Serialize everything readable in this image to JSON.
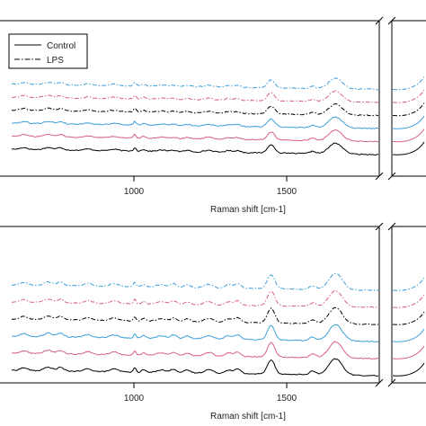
{
  "chart_data": [
    {
      "type": "line",
      "panel": "top",
      "xlabel": "Raman shift [cm-1]",
      "ylabel": "",
      "x_ticks": [
        1000,
        1500
      ],
      "xlim": [
        600,
        1800
      ],
      "axis_break_after": 1800,
      "grid": false,
      "legend": {
        "placement": "top-left",
        "entries": [
          {
            "label": "Control",
            "style": "solid"
          },
          {
            "label": "LPS",
            "style": "dashdot"
          }
        ]
      },
      "series": [
        {
          "color": "#000000",
          "style": "solid",
          "offset": 0
        },
        {
          "color": "#d8607e",
          "style": "solid",
          "offset": 1
        },
        {
          "color": "#3c9fd8",
          "style": "solid",
          "offset": 2
        },
        {
          "color": "#000000",
          "style": "dashdot",
          "offset": 3
        },
        {
          "color": "#d8607e",
          "style": "dashdot",
          "offset": 4
        },
        {
          "color": "#3c9fd8",
          "style": "dashdot",
          "offset": 5
        }
      ]
    },
    {
      "type": "line",
      "panel": "bottom",
      "xlabel": "Raman shift [cm-1]",
      "ylabel": "",
      "x_ticks": [
        1000,
        1500
      ],
      "xlim": [
        600,
        1800
      ],
      "axis_break_after": 1800,
      "grid": false,
      "series": [
        {
          "color": "#000000",
          "style": "solid",
          "offset": 0
        },
        {
          "color": "#d8607e",
          "style": "solid",
          "offset": 1
        },
        {
          "color": "#3c9fd8",
          "style": "solid",
          "offset": 2
        },
        {
          "color": "#000000",
          "style": "dashdot",
          "offset": 3
        },
        {
          "color": "#d8607e",
          "style": "dashdot",
          "offset": 4
        },
        {
          "color": "#3c9fd8",
          "style": "dashdot",
          "offset": 5
        }
      ]
    }
  ]
}
